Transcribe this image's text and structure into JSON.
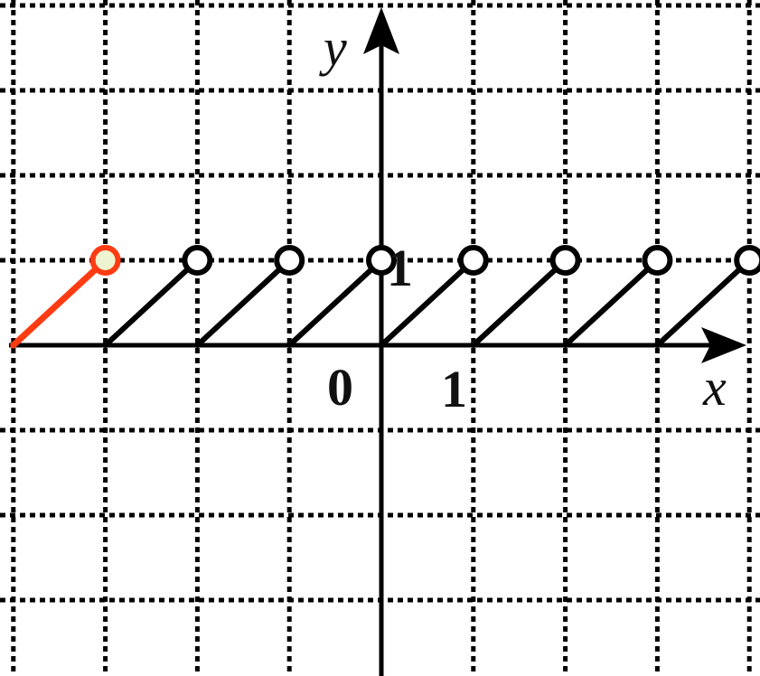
{
  "chart_data": {
    "type": "line",
    "title": "",
    "xlabel": "x",
    "ylabel": "y",
    "xlim": [
      -4,
      4
    ],
    "ylim": [
      -4,
      4
    ],
    "grid": true,
    "tick_labels": {
      "origin": "0",
      "x_one": "1",
      "y_one": "1"
    },
    "series": [
      {
        "style": "highlight",
        "color": "#ff3b12",
        "points": [
          [
            -4,
            0
          ],
          [
            -3,
            1
          ]
        ],
        "open_end": [
          -3,
          1
        ]
      },
      {
        "style": "normal",
        "color": "#000000",
        "segments": [
          [
            [
              -3,
              0
            ],
            [
              -2,
              1
            ]
          ],
          [
            [
              -2,
              0
            ],
            [
              -1,
              1
            ]
          ],
          [
            [
              -1,
              0
            ],
            [
              0,
              1
            ]
          ],
          [
            [
              0,
              0
            ],
            [
              1,
              1
            ]
          ],
          [
            [
              1,
              0
            ],
            [
              2,
              1
            ]
          ],
          [
            [
              2,
              0
            ],
            [
              3,
              1
            ]
          ],
          [
            [
              3,
              0
            ],
            [
              4,
              1
            ]
          ]
        ],
        "open_ends": [
          [
            -2,
            1
          ],
          [
            -1,
            1
          ],
          [
            0,
            1
          ],
          [
            1,
            1
          ],
          [
            2,
            1
          ],
          [
            3,
            1
          ],
          [
            4,
            1
          ]
        ]
      }
    ]
  }
}
